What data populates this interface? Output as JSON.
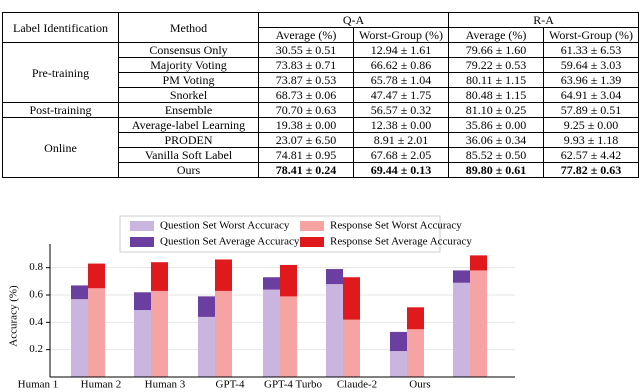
{
  "table": {
    "header": [
      "Label Identification",
      "Method",
      "Q-A",
      "R-A"
    ],
    "subheader": [
      "Average (%)",
      "Worst-Group (%)",
      "Average (%)",
      "Worst-Group (%)"
    ],
    "groups": [
      {
        "label": "Pre-training",
        "rows": [
          {
            "method": "Consensus Only",
            "cells": [
              "30.55 ± 0.51",
              "12.94 ± 1.61",
              "79.66 ± 1.60",
              "61.33 ± 6.53"
            ]
          },
          {
            "method": "Majority Voting",
            "cells": [
              "73.83 ± 0.71",
              "66.62 ± 0.86",
              "79.22 ± 0.53",
              "59.64 ± 3.03"
            ]
          },
          {
            "method": "PM Voting",
            "cells": [
              "73.87 ± 0.53",
              "65.78 ± 1.04",
              "80.11 ± 1.15",
              "63.96 ± 1.39"
            ]
          },
          {
            "method": "Snorkel",
            "cells": [
              "68.73 ± 0.06",
              "47.47 ± 1.75",
              "80.48 ± 1.15",
              "64.91 ± 3.04"
            ]
          }
        ]
      },
      {
        "label": "Post-training",
        "rows": [
          {
            "method": "Ensemble",
            "cells": [
              "70.70 ± 0.63",
              "56.57 ± 0.32",
              "81.10 ± 0.25",
              "57.89 ± 0.51"
            ]
          }
        ]
      },
      {
        "label": "Online",
        "rows": [
          {
            "method": "Average-label Learning",
            "cells": [
              "19.38 ± 0.00",
              "12.38 ± 0.00",
              "35.86 ± 0.00",
              "9.25 ± 0.00"
            ]
          },
          {
            "method": "PRODEN",
            "cells": [
              "23.07 ± 6.50",
              "8.91 ± 2.01",
              "36.06 ± 0.34",
              "9.93 ± 1.18"
            ]
          },
          {
            "method": "Vanilla Soft Label",
            "cells": [
              "74.81 ± 0.95",
              "67.68 ± 2.05",
              "85.52 ± 0.50",
              "62.57 ± 4.42"
            ]
          },
          {
            "method": "Ours",
            "cells": [
              "78.41 ± 0.24",
              "69.44 ± 0.13",
              "89.80 ± 0.61",
              "77.82 ± 0.63"
            ]
          }
        ]
      }
    ]
  },
  "chart_data": {
    "type": "bar",
    "y_label": "Accuracy (%)",
    "categories": [
      "Human 1",
      "Human 2",
      "Human 3",
      "GPT-4",
      "GPT-4 Turbo",
      "Claude-2",
      "Ours"
    ],
    "series": [
      {
        "name": "Question Set Worst Accuracy",
        "color": "#c9b5df",
        "values": [
          0.57,
          0.49,
          0.44,
          0.64,
          0.68,
          0.19,
          0.69
        ]
      },
      {
        "name": "Question Set Average Accuracy",
        "color": "#6b3fa0",
        "values": [
          0.67,
          0.62,
          0.59,
          0.73,
          0.79,
          0.33,
          0.78
        ]
      },
      {
        "name": "Response Set Worst Accuracy",
        "color": "#f5a3a3",
        "values": [
          0.65,
          0.63,
          0.63,
          0.59,
          0.42,
          0.35,
          0.78
        ]
      },
      {
        "name": "Response Set Average Accuracy",
        "color": "#e0191c",
        "values": [
          0.83,
          0.84,
          0.86,
          0.82,
          0.73,
          0.51,
          0.89
        ]
      }
    ],
    "ylim": [
      0,
      0.9
    ],
    "yticks": [
      0.2,
      0.4,
      0.6,
      0.8
    ],
    "grid": true
  }
}
